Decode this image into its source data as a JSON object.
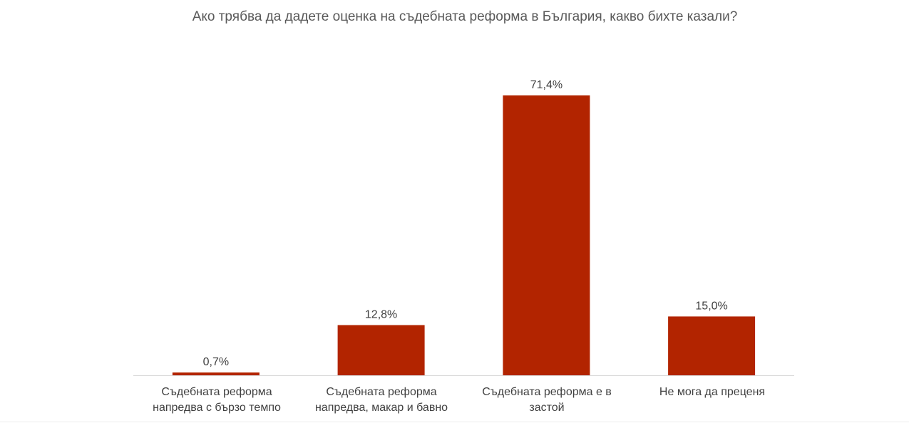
{
  "chart_data": {
    "type": "bar",
    "title": "Ако трябва да дадете оценка на съдебната реформа в България, какво бихте казали?",
    "categories": [
      "Съдебната реформа напредва с бързо темпо",
      "Съдебната реформа напредва, макар и бавно",
      "Съдебната реформа е в застой",
      "Не мога да преценя"
    ],
    "values": [
      0.7,
      12.8,
      71.4,
      15.0
    ],
    "value_labels": [
      "0,7%",
      "12,8%",
      "71,4%",
      "15,0%"
    ],
    "ylim": [
      0,
      80
    ],
    "xlabel": "",
    "ylabel": "",
    "grid": false,
    "legend": "none",
    "bar_color": "#b22400",
    "axis_color": "#d9d9d9"
  }
}
